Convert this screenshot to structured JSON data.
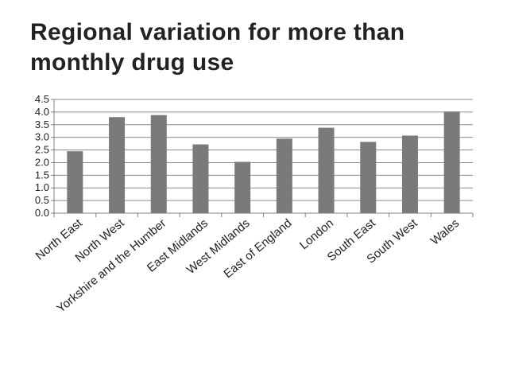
{
  "title": "Regional variation for more than monthly drug use",
  "chart_data": {
    "type": "bar",
    "title": "Regional variation for more than monthly drug use",
    "xlabel": "",
    "ylabel": "",
    "categories": [
      "North East",
      "North West",
      "Yorkshire and the Humber",
      "East Midlands",
      "West Midlands",
      "East of England",
      "London",
      "South East",
      "South West",
      "Wales"
    ],
    "values": [
      2.45,
      3.8,
      3.88,
      2.72,
      2.03,
      2.95,
      3.38,
      2.82,
      3.07,
      4.02
    ],
    "ylim": [
      0,
      4.5
    ],
    "yticks": [
      "0.0",
      "0.5",
      "1.0",
      "1.5",
      "2.0",
      "2.5",
      "3.0",
      "3.5",
      "4.0",
      "4.5"
    ],
    "grid": true,
    "legend": "none",
    "colors": {
      "bar": "#7a7a7d",
      "grid": "#8c8c8c",
      "axis": "#7f7f7f",
      "text": "#222222"
    }
  }
}
